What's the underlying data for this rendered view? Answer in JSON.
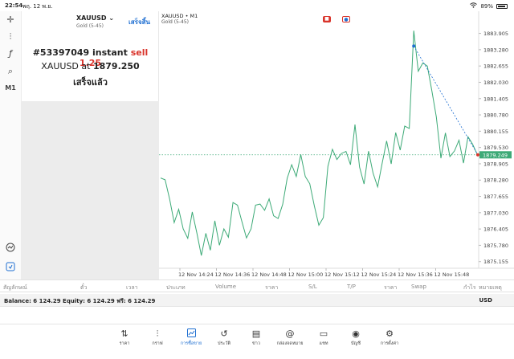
{
  "status": {
    "time": "22:54",
    "date": "พฤ. 12 พ.ย.",
    "battery": "89%"
  },
  "left_tools": [
    {
      "name": "crosshair-icon",
      "glyph": "✛"
    },
    {
      "name": "chart-type-icon",
      "glyph": "⫶"
    },
    {
      "name": "indicator-icon",
      "glyph": "ƒ"
    },
    {
      "name": "objects-icon",
      "glyph": "⌕"
    },
    {
      "name": "timeframe",
      "glyph": "M1"
    }
  ],
  "trade": {
    "symbol": "XAUUSD",
    "dropdown_glyph": "⌄",
    "subtitle": "Gold (5-45)",
    "done_label": "เสร็จสิ้น",
    "order_prefix": "#53397049 instant ",
    "order_action": "sell 1.25",
    "symbol_at": "XAUUSD at ",
    "price": "1879.250",
    "status_text": "เสร็จแล้ว"
  },
  "chart": {
    "symbol_label": "XAUUSD • M1",
    "subtitle": "Gold (5-45)",
    "current_price": "1879.249",
    "colors": {
      "line": "#3daa77",
      "current": "#3daa77",
      "trade_entry": "#1f6fd1",
      "trade_exit": "#d9342b"
    }
  },
  "chart_data": {
    "type": "line",
    "y_ticks": [
      "1883.905",
      "1883.280",
      "1882.655",
      "1882.030",
      "1881.405",
      "1880.780",
      "1880.155",
      "1879.530",
      "1878.905",
      "1878.280",
      "1877.655",
      "1877.030",
      "1876.405",
      "1875.780",
      "1875.155"
    ],
    "ylim": [
      1874.9,
      1884.2
    ],
    "x_ticks": [
      "12 Nov 14:24",
      "12 Nov 14:36",
      "12 Nov 14:48",
      "12 Nov 15:00",
      "12 Nov 15:12",
      "12 Nov 15:24",
      "12 Nov 15:36",
      "12 Nov 15:48"
    ],
    "series": [
      {
        "values": [
          1878.36,
          1878.29,
          1877.54,
          1876.65,
          1877.16,
          1876.41,
          1876.05,
          1877.06,
          1876.27,
          1875.39,
          1876.24,
          1875.59,
          1876.72,
          1875.78,
          1876.41,
          1876.09,
          1877.42,
          1877.32,
          1876.68,
          1876.06,
          1876.41,
          1877.32,
          1877.36,
          1877.12,
          1877.56,
          1876.91,
          1876.81,
          1877.35,
          1878.35,
          1878.87,
          1878.42,
          1879.26,
          1878.42,
          1878.14,
          1877.29,
          1876.55,
          1876.84,
          1878.81,
          1879.46,
          1879.07,
          1879.3,
          1879.38,
          1878.87,
          1880.41,
          1878.78,
          1878.13,
          1879.39,
          1878.55,
          1878.02,
          1878.92,
          1879.78,
          1878.9,
          1880.1,
          1879.43,
          1880.35,
          1880.26,
          1884.01,
          1882.45,
          1882.77,
          1882.65,
          1881.71,
          1880.7,
          1879.12,
          1880.09,
          1879.18,
          1879.4,
          1879.81,
          1878.93,
          1879.94,
          1879.66,
          1879.28
        ]
      }
    ],
    "trade_line": {
      "from_value": 1883.42,
      "to_value": 1879.25
    }
  },
  "columns": [
    "สัญลักษณ์",
    "ตั๋ว",
    "เวลา",
    "ประเภท",
    "Volume",
    "ราคา",
    "S/L",
    "T/P",
    "ราคา",
    "Swap",
    "กำไร",
    "หมายเหตุ"
  ],
  "balance": {
    "text": "Balance: 6 124.29 Equity: 6 124.29 ฟรี: 6 124.29",
    "currency": "USD"
  },
  "nav": [
    {
      "key": "quotes",
      "icon": "⇅",
      "label": "ราคา"
    },
    {
      "key": "chart",
      "icon": "⫶",
      "label": "กราฟ"
    },
    {
      "key": "trade",
      "icon": "⤴",
      "label": "การซื้อขาย"
    },
    {
      "key": "history",
      "icon": "↺",
      "label": "ประวัติ"
    },
    {
      "key": "news",
      "icon": "▤",
      "label": "ข่าว"
    },
    {
      "key": "mailbox",
      "icon": "@",
      "label": "กล่องจดหมาย"
    },
    {
      "key": "chat",
      "icon": "▭",
      "label": "แชท"
    },
    {
      "key": "accounts",
      "icon": "◉",
      "label": "บัญชี"
    },
    {
      "key": "settings",
      "icon": "⚙",
      "label": "การตั้งค่า"
    }
  ],
  "active_nav": "trade"
}
